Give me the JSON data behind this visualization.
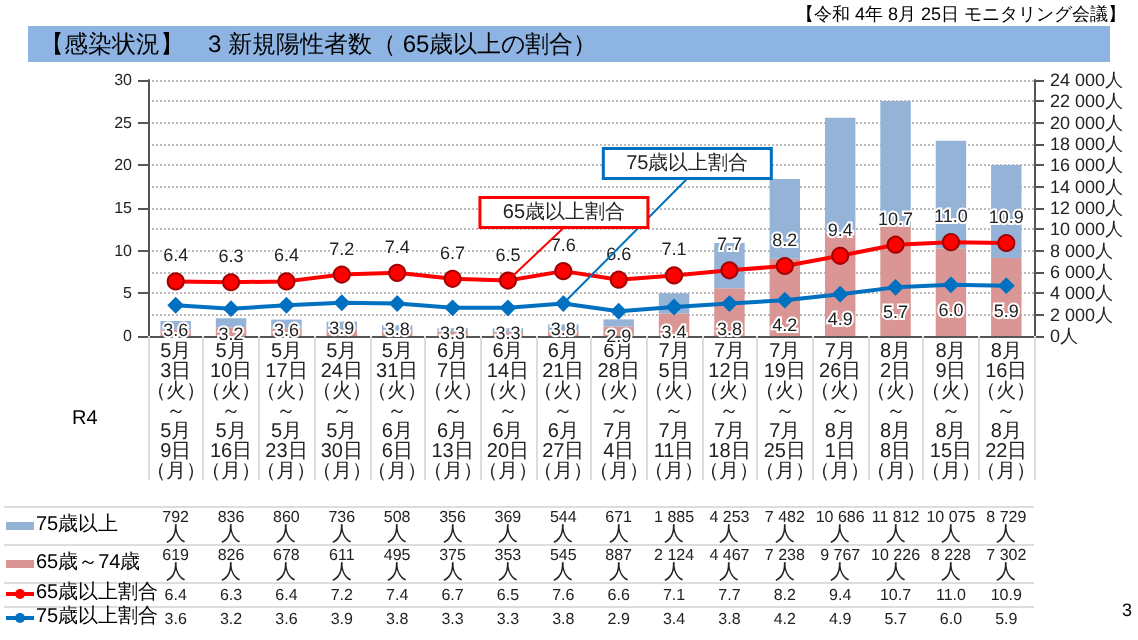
{
  "chart_data": {
    "type": "bar",
    "title": "【感染状況】　3 新規陽性者数（ 65歳以上の割合）",
    "annotations": [
      "【令和 4年 8月 25日 モニタリング会議】",
      "R4",
      "3",
      {
        "text": "65歳以上割合",
        "x": "6月14日（火）～6月20日（月）",
        "y": 6.5
      },
      {
        "text": "75歳以上割合",
        "x": "6月21日（火）～6月27日（月）",
        "y": 3.8
      }
    ],
    "categories": [
      "5月3日（火）～5月9日（月）",
      "5月10日（火）～5月16日（月）",
      "5月17日（火）～5月23日（月）",
      "5月24日（火）～5月30日（月）",
      "5月31日（火）～6月6日（月）",
      "6月7日（火）～6月13日（月）",
      "6月14日（火）～6月20日（月）",
      "6月21日（火）～6月27日（月）",
      "6月28日（火）～7月4日（月）",
      "7月5日（火）～7月11日（月）",
      "7月12日（火）～7月18日（月）",
      "7月19日（火）～7月25日（月）",
      "7月26日（火）～8月1日（月）",
      "8月2日（火）～8月8日（月）",
      "8月9日（火）～8月15日（月）",
      "8月16日（火）～8月22日（月）"
    ],
    "series": [
      {
        "name": "65歳～74歳",
        "axis": "y2",
        "color": "#d99694",
        "values": [
          619,
          826,
          678,
          611,
          495,
          375,
          353,
          545,
          887,
          2124,
          4467,
          7238,
          9767,
          10226,
          8228,
          7302
        ],
        "value_labels": [
          "619人",
          "826人",
          "678人",
          "611人",
          "495人",
          "375人",
          "353人",
          "545人",
          "887人",
          "2 124人",
          "4 467人",
          "7 238人",
          "9 767人",
          "10 226人",
          "8 228人",
          "7 302人"
        ]
      },
      {
        "name": "75歳以上",
        "axis": "y2",
        "color": "#95b3d7",
        "values": [
          792,
          836,
          860,
          736,
          508,
          356,
          369,
          544,
          671,
          1885,
          4253,
          7482,
          10686,
          11812,
          10075,
          8729
        ],
        "value_labels": [
          "792人",
          "836人",
          "860人",
          "736人",
          "508人",
          "356人",
          "369人",
          "544人",
          "671人",
          "1 885人",
          "4 253人",
          "7 482人",
          "10 686人",
          "11 812人",
          "10 075人",
          "8 729人"
        ]
      },
      {
        "name": "65歳以上割合",
        "type": "line",
        "marker": "circle",
        "color": "#ff0000",
        "values": [
          6.4,
          6.3,
          6.4,
          7.2,
          7.4,
          6.7,
          6.5,
          7.6,
          6.6,
          7.1,
          7.7,
          8.2,
          9.4,
          10.7,
          11.0,
          10.9
        ],
        "value_labels": [
          "6.4",
          "6.3",
          "6.4",
          "7.2",
          "7.4",
          "6.7",
          "6.5",
          "7.6",
          "6.6",
          "7.1",
          "7.7",
          "8.2",
          "9.4",
          "10.7",
          "11.0",
          "10.9"
        ]
      },
      {
        "name": "75歳以上割合",
        "type": "line",
        "marker": "diamond",
        "color": "#0070c0",
        "values": [
          3.6,
          3.2,
          3.6,
          3.9,
          3.8,
          3.3,
          3.3,
          3.8,
          2.9,
          3.4,
          3.8,
          4.2,
          4.9,
          5.7,
          6.0,
          5.9
        ],
        "value_labels": [
          "3.6",
          "3.2",
          "3.6",
          "3.9",
          "3.8",
          "3.3",
          "3.3",
          "3.8",
          "2.9",
          "3.4",
          "3.8",
          "4.2",
          "4.9",
          "5.7",
          "6.0",
          "5.9"
        ]
      }
    ],
    "stacked": true,
    "ylim": [
      0,
      30
    ],
    "yticks": [
      0,
      5,
      10,
      15,
      20,
      25,
      30
    ],
    "y2lim": [
      0,
      24000
    ],
    "y2ticks": [
      {
        "value": 0,
        "label": "0人"
      },
      {
        "value": 2000,
        "label": "2 000人"
      },
      {
        "value": 4000,
        "label": "4 000人"
      },
      {
        "value": 6000,
        "label": "6 000人"
      },
      {
        "value": 8000,
        "label": "8 000人"
      },
      {
        "value": 10000,
        "label": "10 000人"
      },
      {
        "value": 12000,
        "label": "12 000人"
      },
      {
        "value": 14000,
        "label": "14 000人"
      },
      {
        "value": 16000,
        "label": "16 000人"
      },
      {
        "value": 18000,
        "label": "18 000人"
      },
      {
        "value": 20000,
        "label": "20 000人"
      },
      {
        "value": 22000,
        "label": "22 000人"
      },
      {
        "value": 24000,
        "label": "24 000人"
      }
    ],
    "grid": true,
    "legend": "bottom left"
  }
}
